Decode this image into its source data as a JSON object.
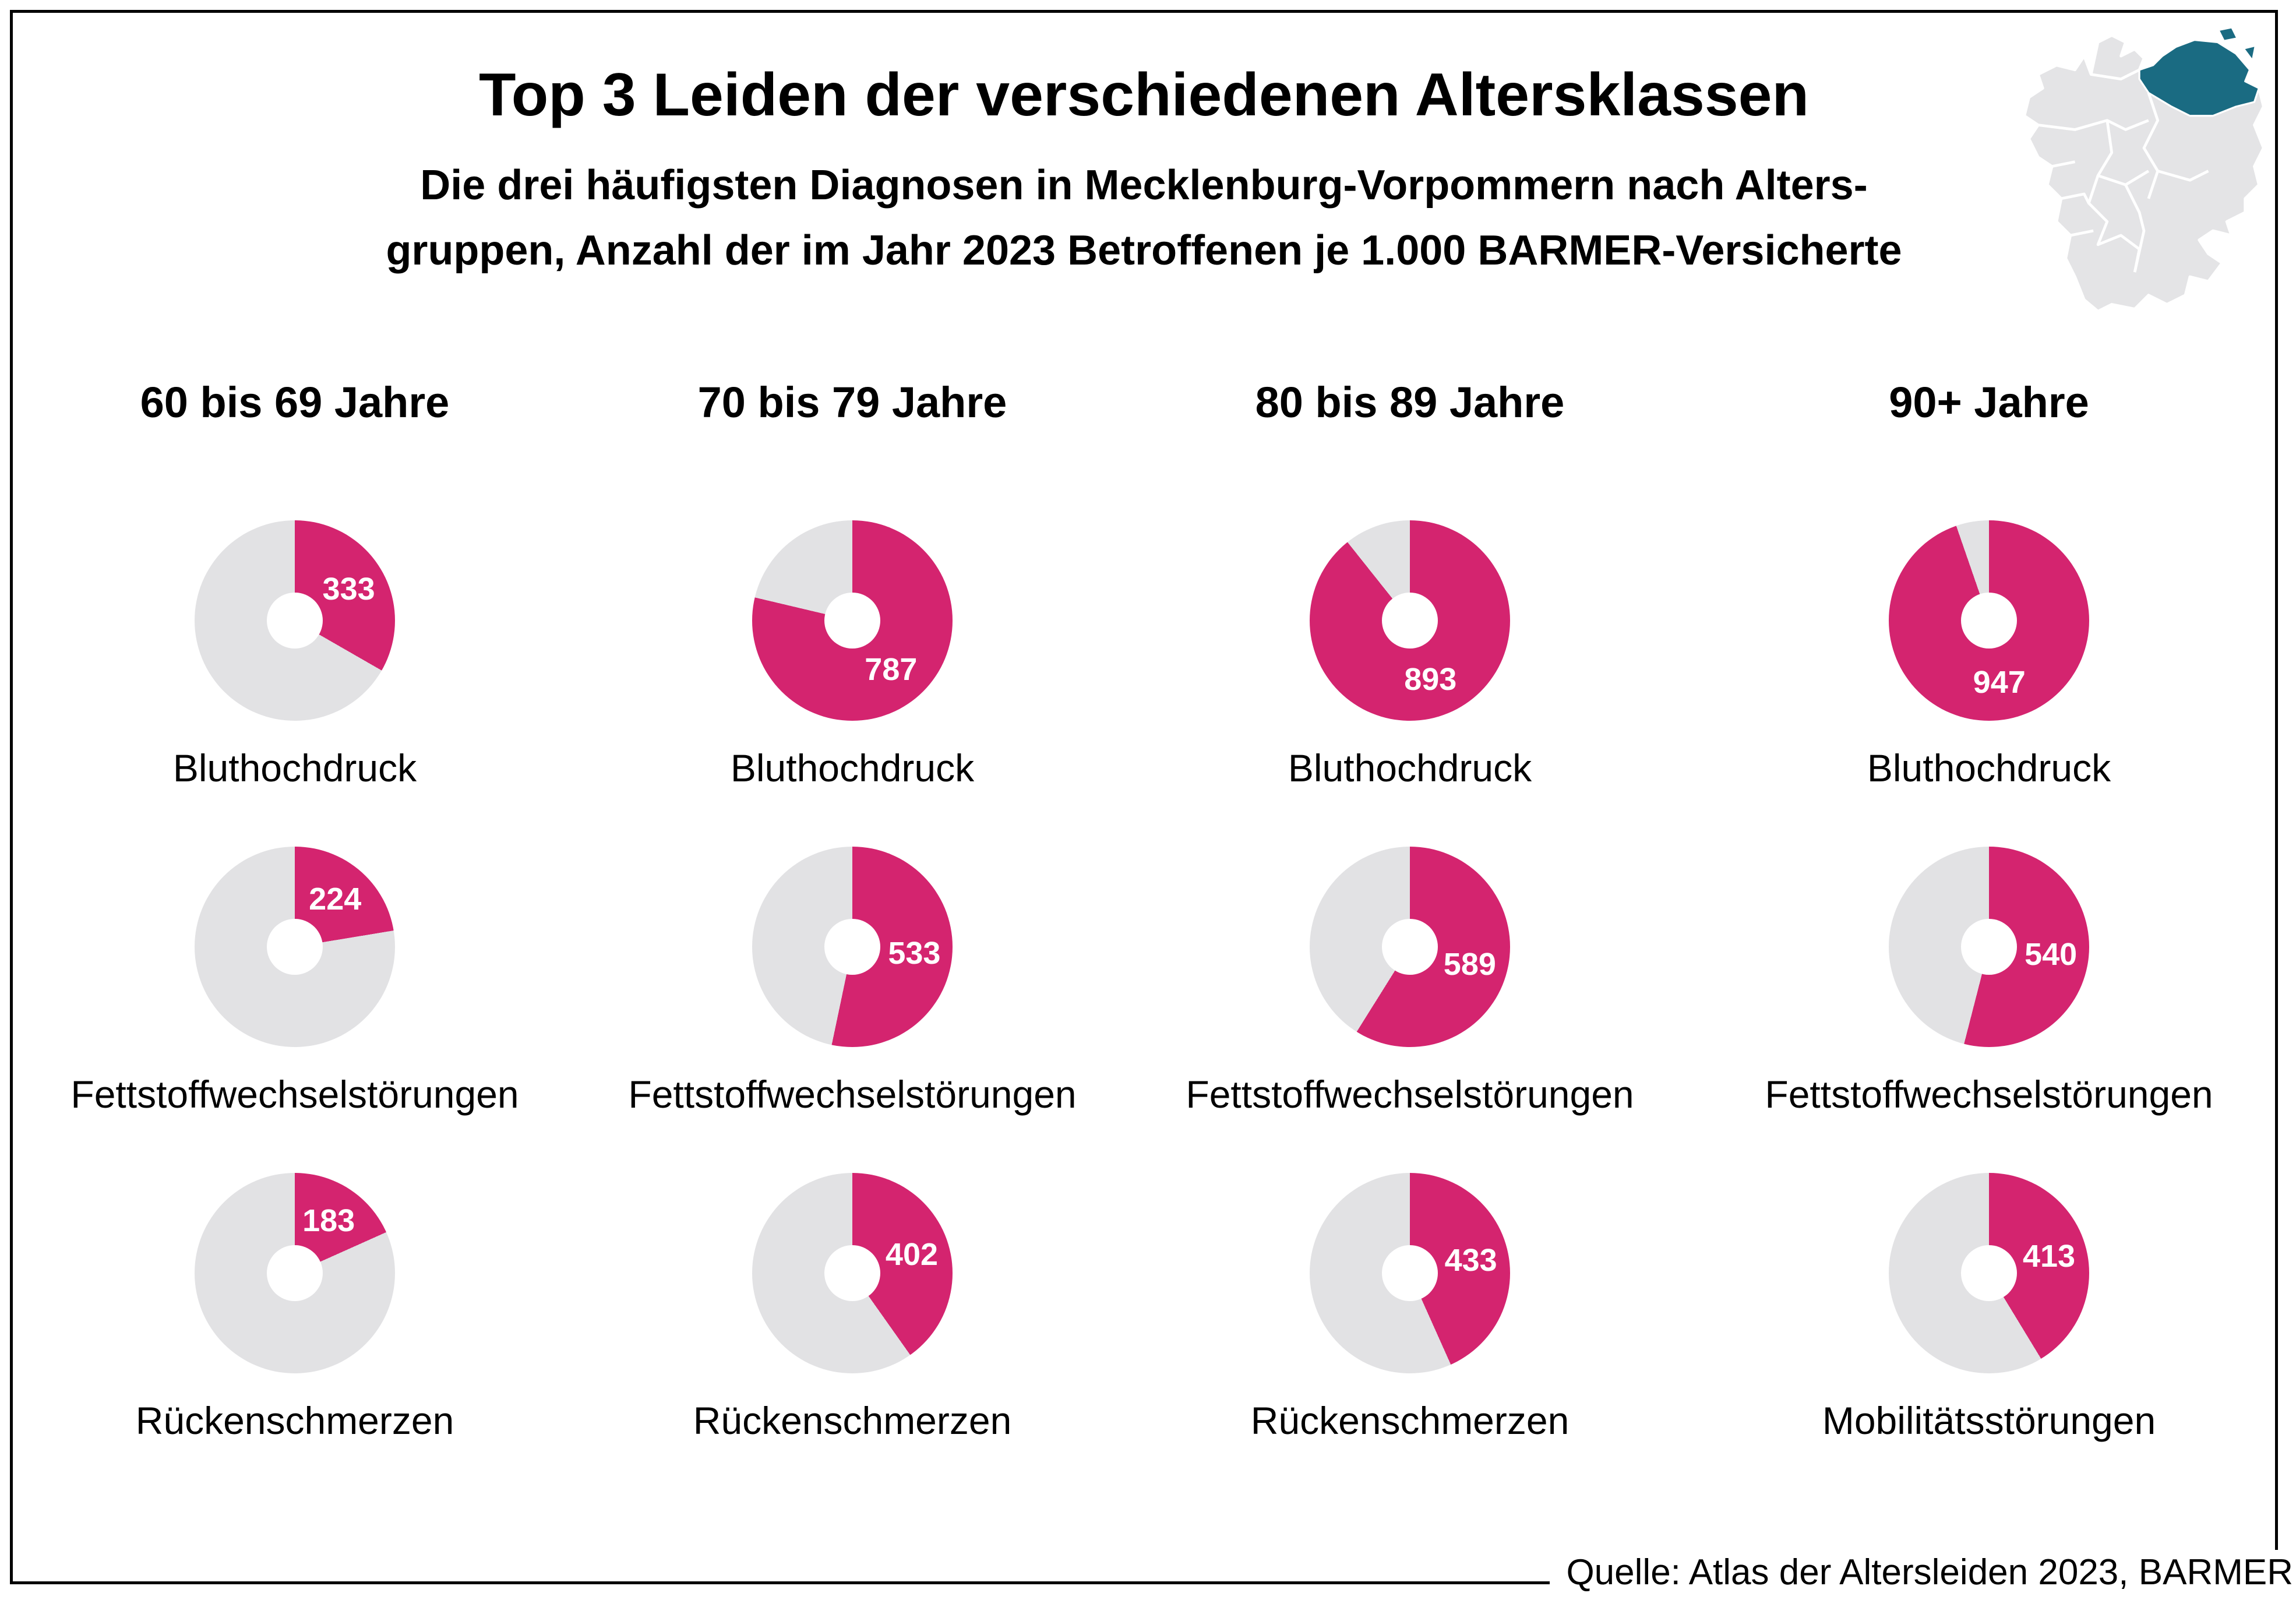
{
  "chart_data": {
    "type": "pie",
    "variant": "donut-grid",
    "title": "Top 3 Leiden der verschiedenen Altersklassen",
    "subtitle_lines": [
      "Die drei häufigsten Diagnosen in Mecklenburg-Vorpommern nach Alters-",
      "gruppen, Anzahl der im Jahr 2023 Betroffenen je 1.000 BARMER-Versicherte"
    ],
    "max_value": 1000,
    "unit": "Betroffene je 1.000 BARMER-Versicherte",
    "legend_position": "none",
    "grid": false,
    "columns": [
      "60 bis 69 Jahre",
      "70 bis 79 Jahre",
      "80 bis 89 Jahre",
      "90+ Jahre"
    ],
    "rows": [
      {
        "cells": [
          {
            "label": "Bluthochdruck",
            "value": 333
          },
          {
            "label": "Bluthochdruck",
            "value": 787
          },
          {
            "label": "Bluthochdruck",
            "value": 893
          },
          {
            "label": "Bluthochdruck",
            "value": 947
          }
        ]
      },
      {
        "cells": [
          {
            "label": "Fettstoffwechselstörungen",
            "value": 224
          },
          {
            "label": "Fettstoffwechselstörungen",
            "value": 533
          },
          {
            "label": "Fettstoffwechselstörungen",
            "value": 589
          },
          {
            "label": "Fettstoffwechselstörungen",
            "value": 540
          }
        ]
      },
      {
        "cells": [
          {
            "label": "Rückenschmerzen",
            "value": 183
          },
          {
            "label": "Rückenschmerzen",
            "value": 402
          },
          {
            "label": "Rückenschmerzen",
            "value": 433
          },
          {
            "label": "Mobilitätsstörungen",
            "value": 413
          }
        ]
      }
    ],
    "colors": {
      "value_arc": "#d4246f",
      "remainder_arc": "#e2e2e4",
      "value_label": "#ffffff",
      "text": "#000000"
    },
    "source": "Quelle: Atlas der Altersleiden 2023, BARMER"
  },
  "map": {
    "highlighted_region": "Mecklenburg-Vorpommern",
    "highlight_color": "#1a6b82",
    "base_color": "#e4e4e6",
    "border_color": "#ffffff"
  }
}
